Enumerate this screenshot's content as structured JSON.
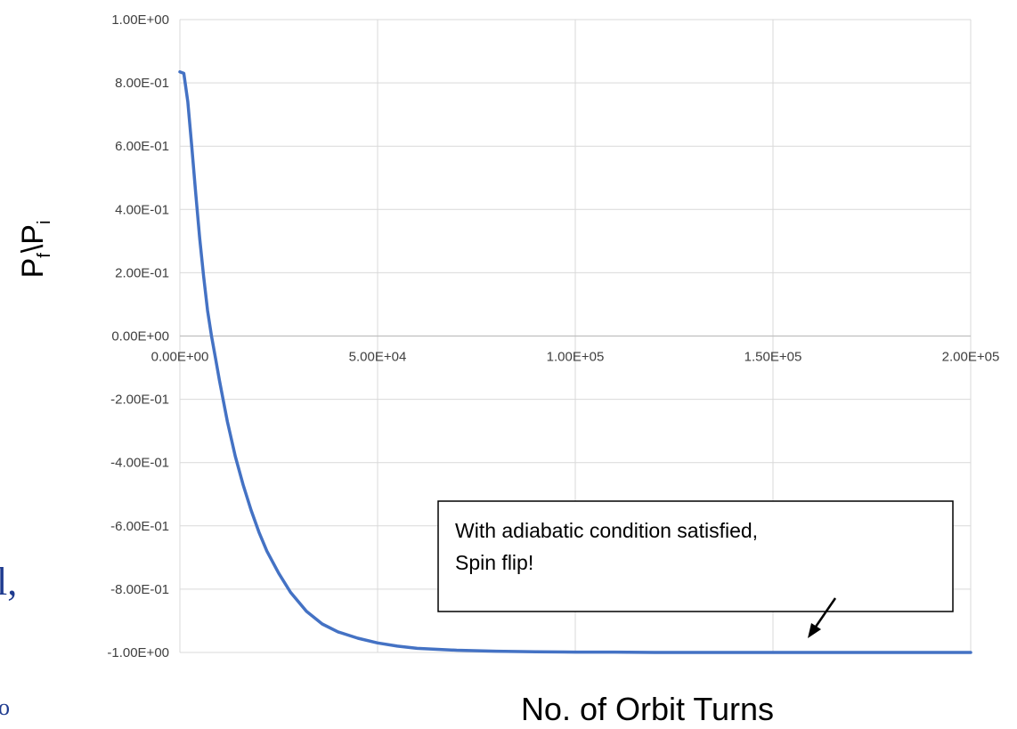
{
  "chart_data": {
    "type": "line",
    "title": "",
    "xlabel": "No. of Orbit Turns",
    "ylabel": {
      "base1": "P",
      "sub1": "f",
      "sep": "\\",
      "base2": "P",
      "sub2": "i"
    },
    "xlim": [
      0,
      200000
    ],
    "ylim": [
      -1.0,
      1.0
    ],
    "x_ticks": [
      {
        "value": 0,
        "label": "0.00E+00"
      },
      {
        "value": 50000,
        "label": "5.00E+04"
      },
      {
        "value": 100000,
        "label": "1.00E+05"
      },
      {
        "value": 150000,
        "label": "1.50E+05"
      },
      {
        "value": 200000,
        "label": "2.00E+05"
      }
    ],
    "y_ticks": [
      {
        "value": 1.0,
        "label": "1.00E+00"
      },
      {
        "value": 0.8,
        "label": "8.00E-01"
      },
      {
        "value": 0.6,
        "label": "6.00E-01"
      },
      {
        "value": 0.4,
        "label": "4.00E-01"
      },
      {
        "value": 0.2,
        "label": "2.00E-01"
      },
      {
        "value": 0.0,
        "label": "0.00E+00"
      },
      {
        "value": -0.2,
        "label": "-2.00E-01"
      },
      {
        "value": -0.4,
        "label": "-4.00E-01"
      },
      {
        "value": -0.6,
        "label": "-6.00E-01"
      },
      {
        "value": -0.8,
        "label": "-8.00E-01"
      },
      {
        "value": -1.0,
        "label": "-1.00E+00"
      }
    ],
    "grid": true,
    "series": [
      {
        "color": "#4472c4",
        "x": [
          0,
          1000,
          2000,
          3000,
          4000,
          5000,
          6000,
          7000,
          8000,
          9000,
          10000,
          12000,
          14000,
          16000,
          18000,
          20000,
          22000,
          25000,
          28000,
          32000,
          36000,
          40000,
          45000,
          50000,
          55000,
          60000,
          70000,
          80000,
          90000,
          100000,
          110000,
          120000,
          140000,
          160000,
          180000,
          200000
        ],
        "y": [
          0.835,
          0.83,
          0.74,
          0.6,
          0.45,
          0.31,
          0.19,
          0.08,
          0.0,
          -0.07,
          -0.14,
          -0.27,
          -0.38,
          -0.47,
          -0.55,
          -0.62,
          -0.68,
          -0.75,
          -0.81,
          -0.87,
          -0.91,
          -0.935,
          -0.955,
          -0.97,
          -0.98,
          -0.987,
          -0.993,
          -0.996,
          -0.998,
          -0.999,
          -0.999,
          -1.0,
          -1.0,
          -1.0,
          -1.0,
          -1.0
        ]
      }
    ],
    "annotation": {
      "lines": [
        "With adiabatic condition satisfied,",
        "Spin flip!"
      ],
      "arrow": true
    },
    "colors": {
      "line": "#4472c4",
      "grid": "#d9d9d9",
      "tick_text": "#3f3f3f",
      "edge_glyph": "#1f3b8f"
    },
    "edge_fragments": [
      "l,",
      "o"
    ]
  }
}
